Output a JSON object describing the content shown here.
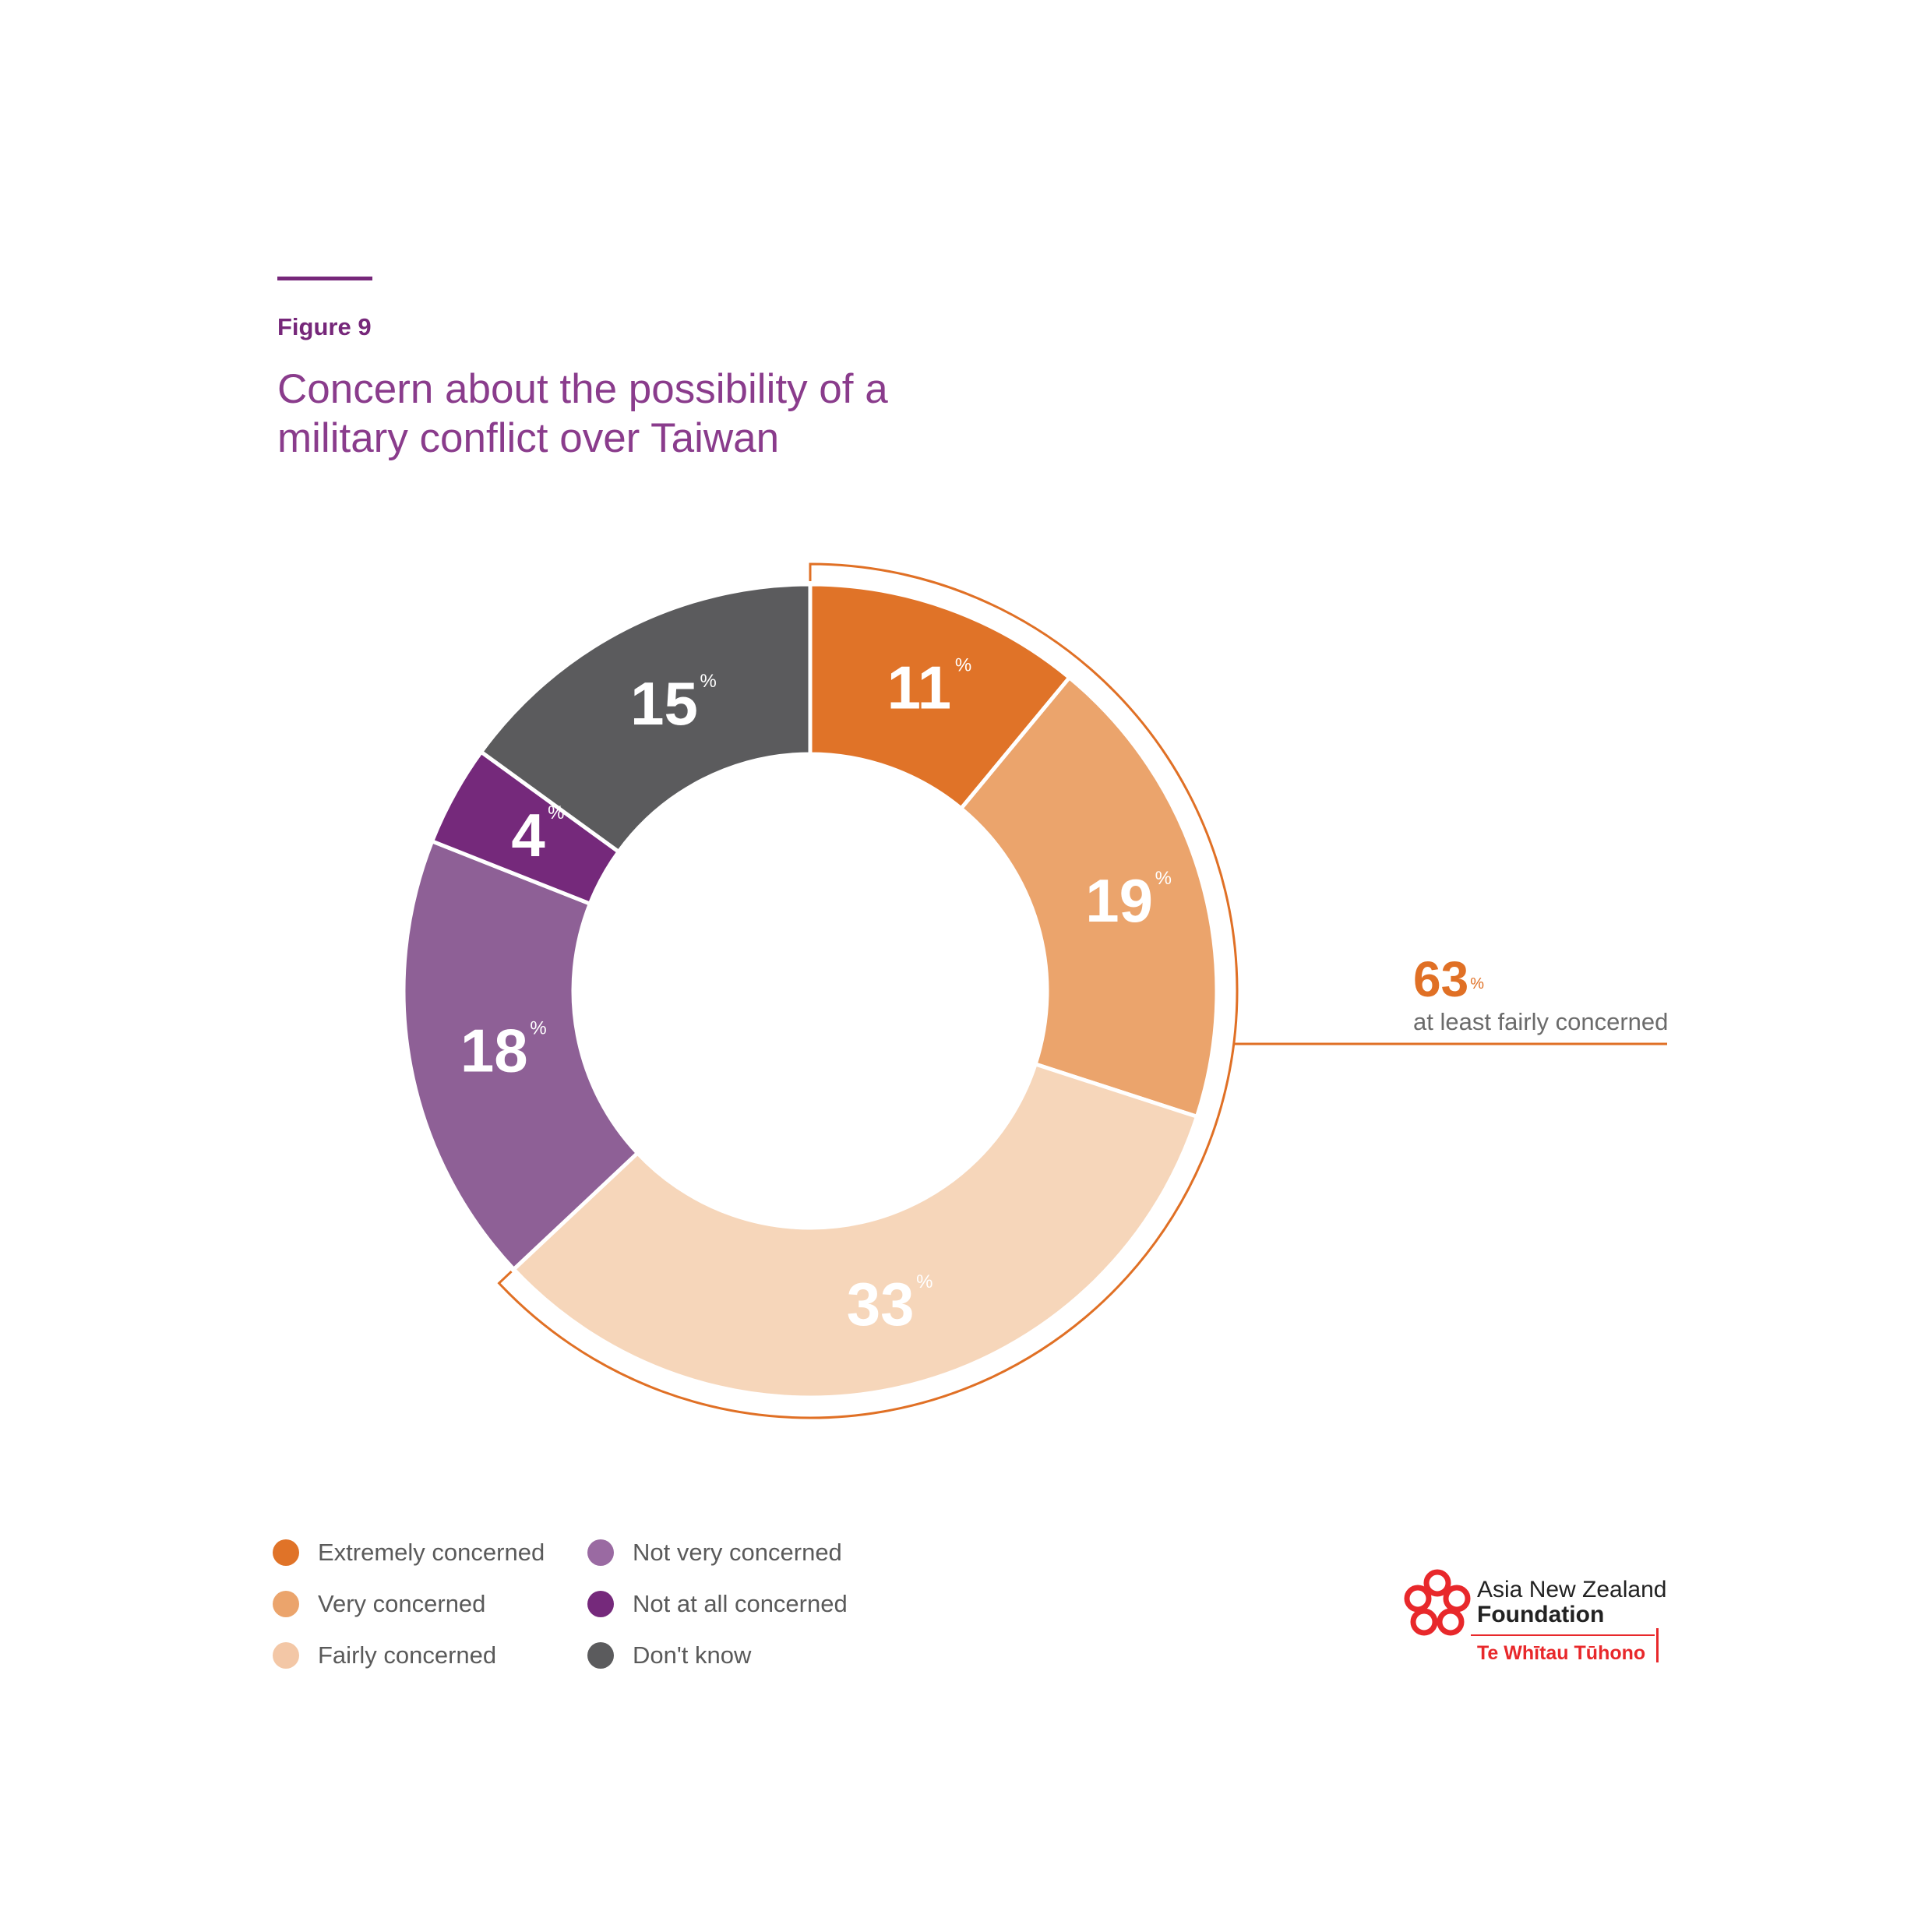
{
  "figure_label": "Figure 9",
  "chart_data": {
    "type": "pie",
    "title": "Concern about the possibility of a military conflict over Taiwan",
    "unit": "%",
    "categories": [
      "Extremely concerned",
      "Very concerned",
      "Fairly concerned",
      "Not very concerned",
      "Not at all concerned",
      "Don't know"
    ],
    "values": [
      11,
      19,
      33,
      18,
      4,
      15
    ],
    "colors": [
      "#e07328",
      "#eba46c",
      "#f6d6ba",
      "#8e6096",
      "#75297b",
      "#5b5b5d"
    ],
    "label_colors": [
      "#ffffff",
      "#ffffff",
      "#ffffff",
      "#ffffff",
      "#ffffff",
      "#ffffff"
    ],
    "annotation": {
      "value": "63",
      "unit": "%",
      "label": "at least fairly concerned",
      "covers": [
        "Extremely concerned",
        "Very concerned",
        "Fairly concerned"
      ],
      "color": "#e07025"
    }
  },
  "legend": [
    {
      "label": "Extremely concerned",
      "color": "#e07328"
    },
    {
      "label": "Very concerned",
      "color": "#eba46c"
    },
    {
      "label": "Fairly concerned",
      "color": "#f3c7a6"
    },
    {
      "label": "Not very concerned",
      "color": "#9a6aa2"
    },
    {
      "label": "Not at all concerned",
      "color": "#75297b"
    },
    {
      "label": "Don't know",
      "color": "#5b5b5d"
    }
  ],
  "logo": {
    "line1": "Asia New Zealand",
    "line2": "Foundation",
    "line3": "Te Whītau Tūhono"
  }
}
